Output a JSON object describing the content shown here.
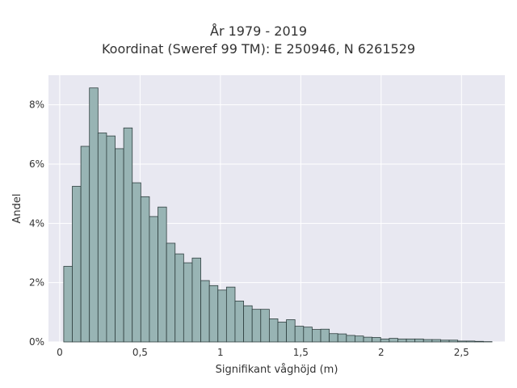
{
  "chart_data": {
    "type": "bar",
    "title_lines": [
      "År 1979 - 2019",
      "Koordinat (Sweref 99 TM): E 250946, N 6261529"
    ],
    "xlabel": "Signifikant våghöjd (m)",
    "ylabel": "Andel",
    "xlim": [
      -0.07,
      2.77
    ],
    "ylim": [
      0,
      0.09
    ],
    "x_ticks": [
      {
        "value": 0,
        "label": "0"
      },
      {
        "value": 0.5,
        "label": "0,5"
      },
      {
        "value": 1,
        "label": "1"
      },
      {
        "value": 1.5,
        "label": "1,5"
      },
      {
        "value": 2,
        "label": "2"
      },
      {
        "value": 2.5,
        "label": "2,5"
      }
    ],
    "y_ticks": [
      {
        "value": 0,
        "label": "0%"
      },
      {
        "value": 0.02,
        "label": "2%"
      },
      {
        "value": 0.04,
        "label": "4%"
      },
      {
        "value": 0.06,
        "label": "6%"
      },
      {
        "value": 0.08,
        "label": "8%"
      }
    ],
    "bin_start": 0.025,
    "bin_width": 0.0533,
    "values": [
      0.0255,
      0.0525,
      0.066,
      0.0857,
      0.0705,
      0.0695,
      0.0652,
      0.0722,
      0.0537,
      0.049,
      0.0423,
      0.0455,
      0.0333,
      0.0297,
      0.0267,
      0.0283,
      0.0207,
      0.019,
      0.0175,
      0.0185,
      0.0138,
      0.0122,
      0.011,
      0.011,
      0.0078,
      0.0067,
      0.0075,
      0.0053,
      0.005,
      0.0042,
      0.0043,
      0.0028,
      0.0027,
      0.0022,
      0.002,
      0.0016,
      0.0015,
      0.001,
      0.0012,
      0.001,
      0.001,
      0.001,
      0.0008,
      0.0008,
      0.0006,
      0.0006,
      0.0003,
      0.0003,
      0.0002,
      0.0001
    ],
    "grid": true,
    "legend": "none",
    "colors": {
      "background": "#e8e8f1",
      "bar_fill": "#98b4b4",
      "bar_edge": "#2f3f3f",
      "grid": "#ffffff"
    }
  }
}
